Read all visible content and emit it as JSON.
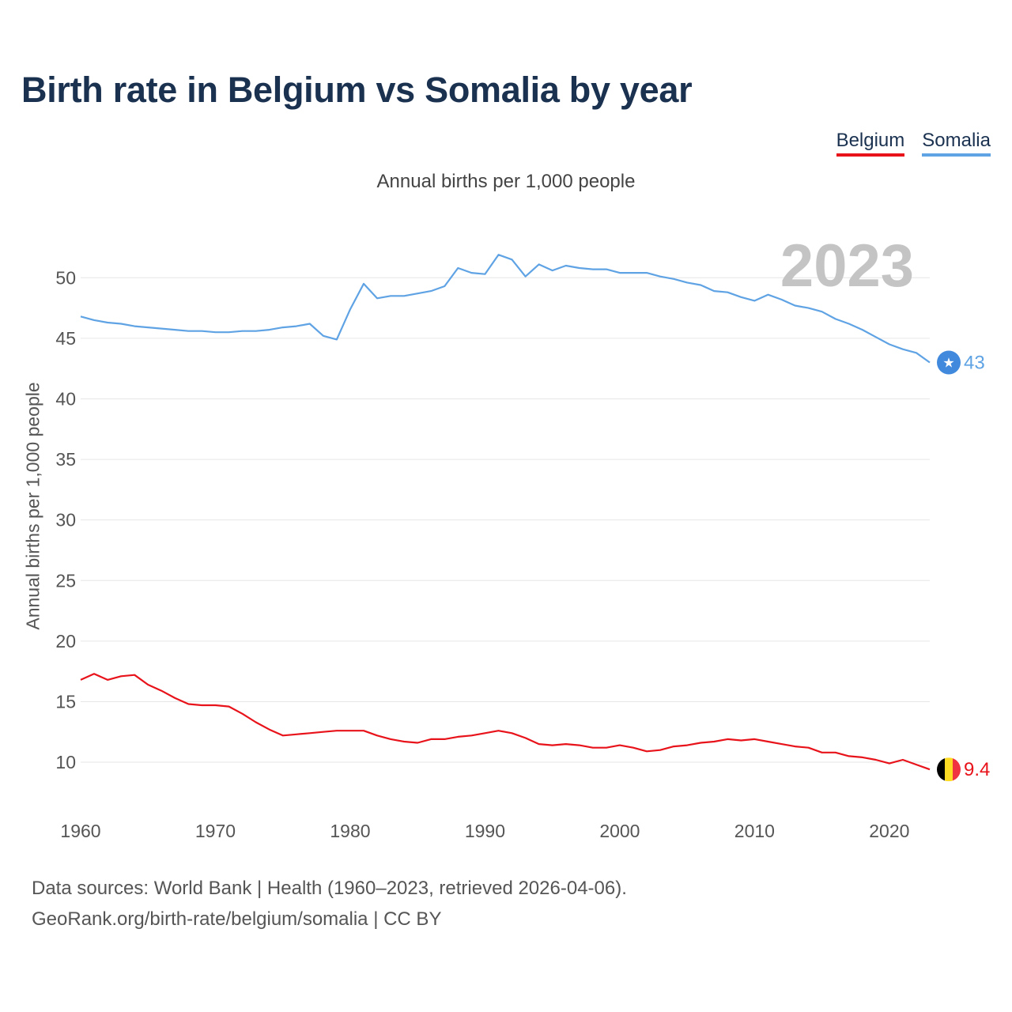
{
  "title": "Birth rate in Belgium vs Somalia by year",
  "legend": {
    "belgium": "Belgium",
    "somalia": "Somalia"
  },
  "footer": {
    "line1": "Data sources: World Bank | Health (1960–2023, retrieved 2026-04-06).",
    "line2": "GeoRank.org/birth-rate/belgium/somalia | CC BY"
  },
  "colors": {
    "belgium": "#e8131a",
    "somalia": "#5fa3e4",
    "title": "#1a3150"
  },
  "chart_data": {
    "type": "line",
    "title": "Birth rate in Belgium vs Somalia by year",
    "subtitle": "Annual births per 1,000 people",
    "xlabel": "",
    "ylabel": "Annual births per 1,000 people",
    "xlim": [
      1960,
      2024
    ],
    "ylim": [
      7,
      54
    ],
    "xticks": [
      1960,
      1970,
      1980,
      1990,
      2000,
      2010,
      2020
    ],
    "yticks": [
      10,
      15,
      20,
      25,
      30,
      35,
      40,
      45,
      50
    ],
    "highlight_year": "2023",
    "end_labels": {
      "belgium": "9.4",
      "somalia": "43"
    },
    "x": [
      1960,
      1961,
      1962,
      1963,
      1964,
      1965,
      1966,
      1967,
      1968,
      1969,
      1970,
      1971,
      1972,
      1973,
      1974,
      1975,
      1976,
      1977,
      1978,
      1979,
      1980,
      1981,
      1982,
      1983,
      1984,
      1985,
      1986,
      1987,
      1988,
      1989,
      1990,
      1991,
      1992,
      1993,
      1994,
      1995,
      1996,
      1997,
      1998,
      1999,
      2000,
      2001,
      2002,
      2003,
      2004,
      2005,
      2006,
      2007,
      2008,
      2009,
      2010,
      2011,
      2012,
      2013,
      2014,
      2015,
      2016,
      2017,
      2018,
      2019,
      2020,
      2021,
      2022,
      2023
    ],
    "series": [
      {
        "name": "Somalia",
        "color": "#5fa3e4",
        "values": [
          46.8,
          46.5,
          46.3,
          46.2,
          46.0,
          45.9,
          45.8,
          45.7,
          45.6,
          45.6,
          45.5,
          45.5,
          45.6,
          45.6,
          45.7,
          45.9,
          46.0,
          46.2,
          45.2,
          44.9,
          47.4,
          49.5,
          48.3,
          48.5,
          48.5,
          48.7,
          48.9,
          49.3,
          50.8,
          50.4,
          50.3,
          51.9,
          51.5,
          50.1,
          51.1,
          50.6,
          51.0,
          50.8,
          50.7,
          50.7,
          50.4,
          50.4,
          50.4,
          50.1,
          49.9,
          49.6,
          49.4,
          48.9,
          48.8,
          48.4,
          48.1,
          48.6,
          48.2,
          47.7,
          47.5,
          47.2,
          46.6,
          46.2,
          45.7,
          45.1,
          44.5,
          44.1,
          43.8,
          43.0
        ]
      },
      {
        "name": "Belgium",
        "color": "#e8131a",
        "values": [
          16.8,
          17.3,
          16.8,
          17.1,
          17.2,
          16.4,
          15.9,
          15.3,
          14.8,
          14.7,
          14.7,
          14.6,
          14.0,
          13.3,
          12.7,
          12.2,
          12.3,
          12.4,
          12.5,
          12.6,
          12.6,
          12.6,
          12.2,
          11.9,
          11.7,
          11.6,
          11.9,
          11.9,
          12.1,
          12.2,
          12.4,
          12.6,
          12.4,
          12.0,
          11.5,
          11.4,
          11.5,
          11.4,
          11.2,
          11.2,
          11.4,
          11.2,
          10.9,
          11.0,
          11.3,
          11.4,
          11.6,
          11.7,
          11.9,
          11.8,
          11.9,
          11.7,
          11.5,
          11.3,
          11.2,
          10.8,
          10.8,
          10.5,
          10.4,
          10.2,
          9.9,
          10.2,
          9.8,
          9.4
        ]
      }
    ]
  }
}
